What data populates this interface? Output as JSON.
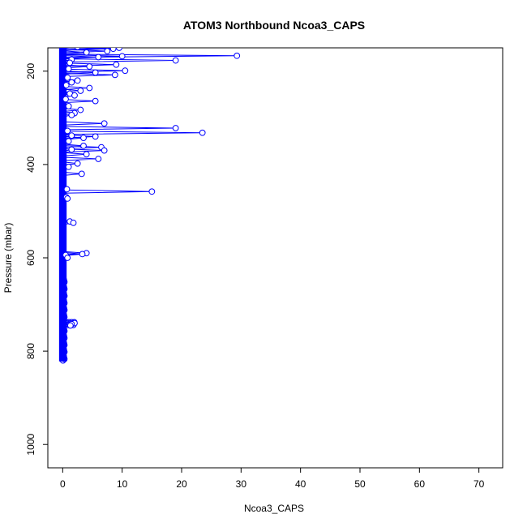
{
  "chart_data": {
    "type": "line",
    "title": "ATOM3 Northbound Ncoa3_CAPS",
    "xlabel": "Ncoa3_CAPS",
    "ylabel": "Pressure (mbar)",
    "xlim": [
      -2.5,
      74
    ],
    "ylim_inverted": [
      1050,
      150
    ],
    "x_ticks": [
      0,
      10,
      20,
      30,
      40,
      50,
      60,
      70
    ],
    "y_ticks": [
      200,
      400,
      600,
      800,
      1000
    ],
    "grid": false,
    "legend": "none",
    "marker": "open-circle",
    "color": "#0000ff",
    "series": [
      {
        "x": [
          2.5,
          8.5,
          9.5,
          4,
          7.5,
          29.3,
          10,
          6,
          1.5,
          19,
          1.2,
          9,
          4.5,
          1,
          10.5,
          5.5,
          8.8,
          0.8,
          2.5,
          1.5,
          0.6,
          4.5,
          3,
          1.2,
          2,
          0.5,
          5.5,
          1,
          3,
          2,
          1.5,
          7,
          19,
          0.8,
          23.5,
          1.5,
          5.5,
          3.5,
          1,
          3.5,
          6.5,
          1.5,
          7,
          4,
          6,
          2.5,
          1,
          3.2,
          0.7,
          15,
          0.6,
          0.8,
          1.2,
          1.8,
          4,
          3.3,
          0.5,
          0.8,
          2,
          1.5,
          1.3
        ],
        "y": [
          148,
          152,
          150,
          160,
          157,
          167,
          168,
          170,
          175,
          177,
          182,
          186,
          190,
          195,
          199,
          203,
          208,
          214,
          220,
          224,
          230,
          236,
          242,
          248,
          252,
          260,
          264,
          275,
          283,
          290,
          294,
          312,
          322,
          328,
          332,
          338,
          340,
          343,
          350,
          360,
          363,
          368,
          370,
          378,
          388,
          398,
          405,
          420,
          453,
          458,
          470,
          473,
          522,
          525,
          590,
          592,
          594,
          600,
          740,
          742,
          745
        ]
      }
    ]
  }
}
